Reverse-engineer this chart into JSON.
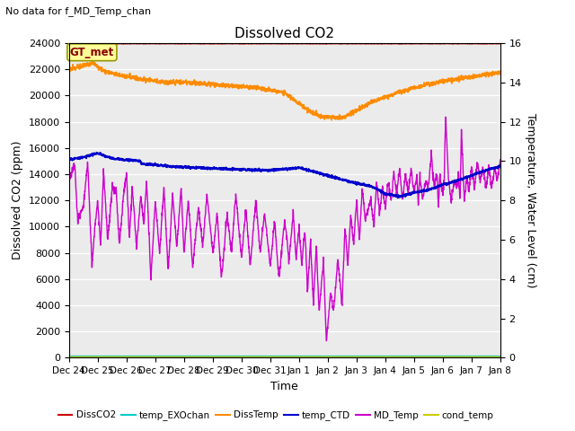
{
  "title": "Dissolved CO2",
  "subtitle": "No data for f_MD_Temp_chan",
  "xlabel": "Time",
  "ylabel_left": "Dissolved CO2 (ppm)",
  "ylabel_right": "Temperature, Water Level (cm)",
  "ylim_left": [
    0,
    24000
  ],
  "ylim_right": [
    0,
    16
  ],
  "plot_bg": "#ebebeb",
  "legend_labels": [
    "DissCO2",
    "temp_EXOchan",
    "DissTemp",
    "temp_CTD",
    "MD_Temp",
    "cond_temp"
  ],
  "legend_colors": [
    "#cc0000",
    "#00cccc",
    "#ff8c00",
    "#0000cc",
    "#cc00cc",
    "#cccc00"
  ],
  "gt_met_label": "GT_met",
  "x_tick_labels": [
    "Dec 24",
    "Dec 25",
    "Dec 26",
    "Dec 27",
    "Dec 28",
    "Dec 29",
    "Dec 30",
    "Dec 31",
    "Jan 1",
    "Jan 2",
    "Jan 3",
    "Jan 4",
    "Jan 5",
    "Jan 6",
    "Jan 7",
    "Jan 8"
  ],
  "yticks_left": [
    0,
    2000,
    4000,
    6000,
    8000,
    10000,
    12000,
    14000,
    16000,
    18000,
    20000,
    22000,
    24000
  ],
  "yticks_right": [
    0,
    2,
    4,
    6,
    8,
    10,
    12,
    14,
    16
  ]
}
